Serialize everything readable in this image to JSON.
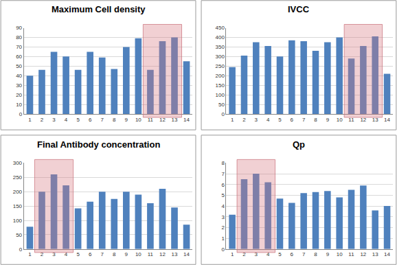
{
  "chart_data": [
    {
      "type": "bar",
      "title": "Maximum Cell density",
      "categories": [
        "1",
        "2",
        "3",
        "4",
        "5",
        "6",
        "7",
        "8",
        "9",
        "10",
        "11",
        "12",
        "13",
        "14"
      ],
      "values": [
        40,
        46,
        65,
        60,
        46,
        65,
        59,
        47,
        70,
        79,
        46,
        76,
        80,
        55
      ],
      "color": "#4f81bd",
      "ylim": [
        0,
        90
      ],
      "yticks": [
        0,
        10,
        20,
        30,
        40,
        50,
        60,
        70,
        80,
        90
      ],
      "grid": true,
      "highlight": [
        "11",
        "13"
      ]
    },
    {
      "type": "bar",
      "title": "IVCC",
      "categories": [
        "1",
        "2",
        "3",
        "4",
        "5",
        "6",
        "7",
        "8",
        "9",
        "10",
        "11",
        "12",
        "13",
        "14"
      ],
      "values": [
        245,
        305,
        375,
        355,
        300,
        385,
        380,
        330,
        375,
        400,
        290,
        355,
        405,
        210
      ],
      "color": "#4f81bd",
      "ylim": [
        0,
        450
      ],
      "yticks": [
        0,
        50,
        100,
        150,
        200,
        250,
        300,
        350,
        400,
        450
      ],
      "grid": true,
      "highlight": [
        "11",
        "13"
      ]
    },
    {
      "type": "bar",
      "title": "Final Antibody concentration",
      "categories": [
        "1",
        "2",
        "3",
        "4",
        "5",
        "6",
        "7",
        "8",
        "9",
        "10",
        "11",
        "12",
        "13",
        "14"
      ],
      "values": [
        78,
        200,
        260,
        222,
        142,
        165,
        200,
        175,
        200,
        190,
        160,
        210,
        145,
        85
      ],
      "color": "#4f81bd",
      "ylim": [
        0,
        300
      ],
      "yticks": [
        0,
        50,
        100,
        150,
        200,
        250,
        300
      ],
      "grid": true,
      "highlight": [
        "2",
        "4"
      ]
    },
    {
      "type": "bar",
      "title": "Qp",
      "categories": [
        "1",
        "2",
        "3",
        "4",
        "5",
        "6",
        "7",
        "8",
        "9",
        "10",
        "11",
        "12",
        "13",
        "14"
      ],
      "values": [
        3.2,
        6.5,
        7.0,
        6.2,
        4.7,
        4.3,
        5.2,
        5.3,
        5.4,
        4.8,
        5.5,
        5.9,
        3.6,
        4.0
      ],
      "color": "#4f81bd",
      "ylim": [
        0,
        8
      ],
      "yticks": [
        0,
        1,
        2,
        3,
        4,
        5,
        6,
        7,
        8
      ],
      "grid": true,
      "highlight": [
        "2",
        "4"
      ]
    }
  ]
}
